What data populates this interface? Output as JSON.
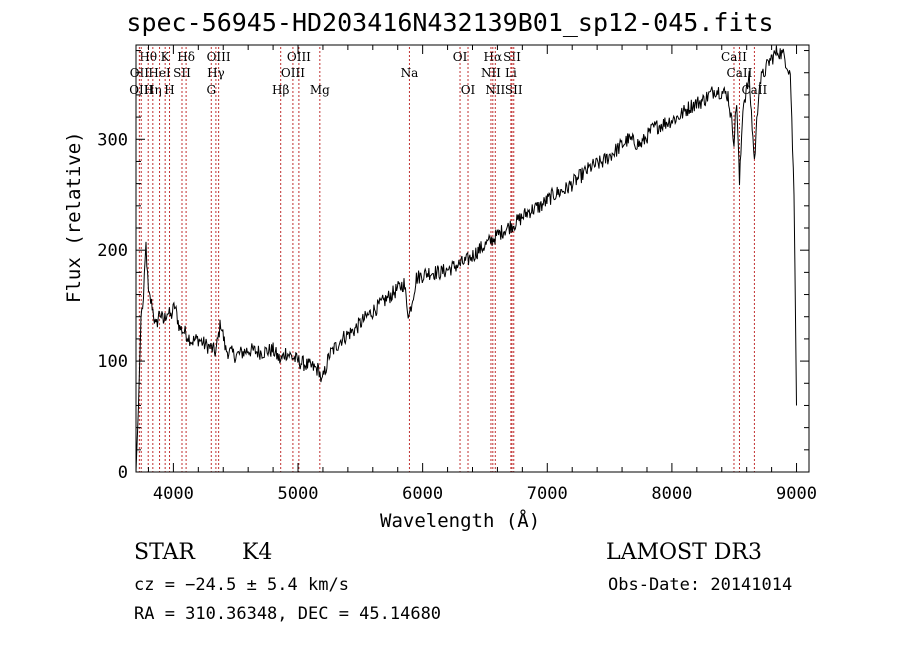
{
  "chart_data": {
    "type": "line",
    "title": "spec-56945-HD203416N432139B01_sp12-045.fits",
    "xlabel": "Wavelength (Å)",
    "ylabel": "Flux (relative)",
    "xlim": [
      3700,
      9100
    ],
    "ylim": [
      0,
      385
    ],
    "xticks": [
      4000,
      5000,
      6000,
      7000,
      8000,
      9000
    ],
    "yticks": [
      0,
      100,
      200,
      300
    ],
    "series": [
      {
        "name": "flux",
        "x": [
          3700,
          3720,
          3740,
          3760,
          3780,
          3800,
          3830,
          3860,
          3890,
          3920,
          3950,
          3980,
          4010,
          4050,
          4100,
          4150,
          4200,
          4250,
          4300,
          4340,
          4380,
          4420,
          4500,
          4600,
          4700,
          4800,
          4860,
          4900,
          5000,
          5100,
          5170,
          5190,
          5250,
          5350,
          5450,
          5550,
          5650,
          5750,
          5850,
          5890,
          5950,
          6050,
          6150,
          6250,
          6350,
          6450,
          6563,
          6650,
          6750,
          6850,
          6950,
          7050,
          7150,
          7250,
          7350,
          7450,
          7550,
          7650,
          7750,
          7850,
          7950,
          8050,
          8150,
          8250,
          8350,
          8450,
          8498,
          8520,
          8542,
          8570,
          8620,
          8662,
          8700,
          8780,
          8850,
          8900,
          8950,
          8980,
          9000
        ],
        "values": [
          0,
          60,
          140,
          155,
          205,
          160,
          150,
          130,
          145,
          135,
          145,
          140,
          150,
          130,
          125,
          118,
          120,
          115,
          112,
          108,
          135,
          110,
          105,
          110,
          108,
          110,
          100,
          108,
          100,
          95,
          92,
          80,
          105,
          120,
          128,
          140,
          150,
          160,
          170,
          140,
          175,
          180,
          180,
          185,
          190,
          200,
          210,
          218,
          225,
          235,
          240,
          250,
          255,
          265,
          275,
          280,
          290,
          300,
          295,
          310,
          315,
          320,
          330,
          335,
          345,
          340,
          300,
          335,
          260,
          330,
          355,
          280,
          350,
          370,
          380,
          375,
          360,
          250,
          60
        ]
      }
    ],
    "lines": [
      {
        "name": "Hθ",
        "wave": 3798,
        "row": 0
      },
      {
        "name": "OII",
        "wave": 3727,
        "row": 1
      },
      {
        "name": "OIII",
        "wave": 3742,
        "row": 2
      },
      {
        "name": "Hη",
        "wave": 3835,
        "row": 2
      },
      {
        "name": "K",
        "wave": 3934,
        "row": 0
      },
      {
        "name": "HeI",
        "wave": 3889,
        "row": 1
      },
      {
        "name": "H",
        "wave": 3969,
        "row": 2
      },
      {
        "name": "SII",
        "wave": 4069,
        "row": 1
      },
      {
        "name": "Hδ",
        "wave": 4102,
        "row": 0
      },
      {
        "name": "OIII",
        "wave": 4363,
        "row": 0
      },
      {
        "name": "Hγ",
        "wave": 4341,
        "row": 1
      },
      {
        "name": "G",
        "wave": 4304,
        "row": 2
      },
      {
        "name": "Hβ",
        "wave": 4861,
        "row": 2
      },
      {
        "name": "OIII",
        "wave": 5007,
        "row": 0
      },
      {
        "name": "OIII",
        "wave": 4959,
        "row": 1
      },
      {
        "name": "Mg",
        "wave": 5175,
        "row": 2
      },
      {
        "name": "Na",
        "wave": 5894,
        "row": 1
      },
      {
        "name": "OI",
        "wave": 6300,
        "row": 0
      },
      {
        "name": "OI",
        "wave": 6364,
        "row": 2
      },
      {
        "name": "Hα",
        "wave": 6563,
        "row": 0
      },
      {
        "name": "NII",
        "wave": 6548,
        "row": 1
      },
      {
        "name": "NII",
        "wave": 6583,
        "row": 2
      },
      {
        "name": "SII",
        "wave": 6717,
        "row": 0
      },
      {
        "name": "Li",
        "wave": 6708,
        "row": 1
      },
      {
        "name": "SII",
        "wave": 6731,
        "row": 2
      },
      {
        "name": "CaII",
        "wave": 8498,
        "row": 0
      },
      {
        "name": "CaII",
        "wave": 8542,
        "row": 1
      },
      {
        "name": "CaII",
        "wave": 8662,
        "row": 2
      }
    ]
  },
  "info": {
    "class": "STAR",
    "subclass": "K4",
    "survey": "LAMOST DR3",
    "redshift": "cz = −24.5 ± 5.4 km/s",
    "obs_date": "Obs-Date: 20141014",
    "coords": "RA = 310.36348, DEC =  45.14680"
  }
}
